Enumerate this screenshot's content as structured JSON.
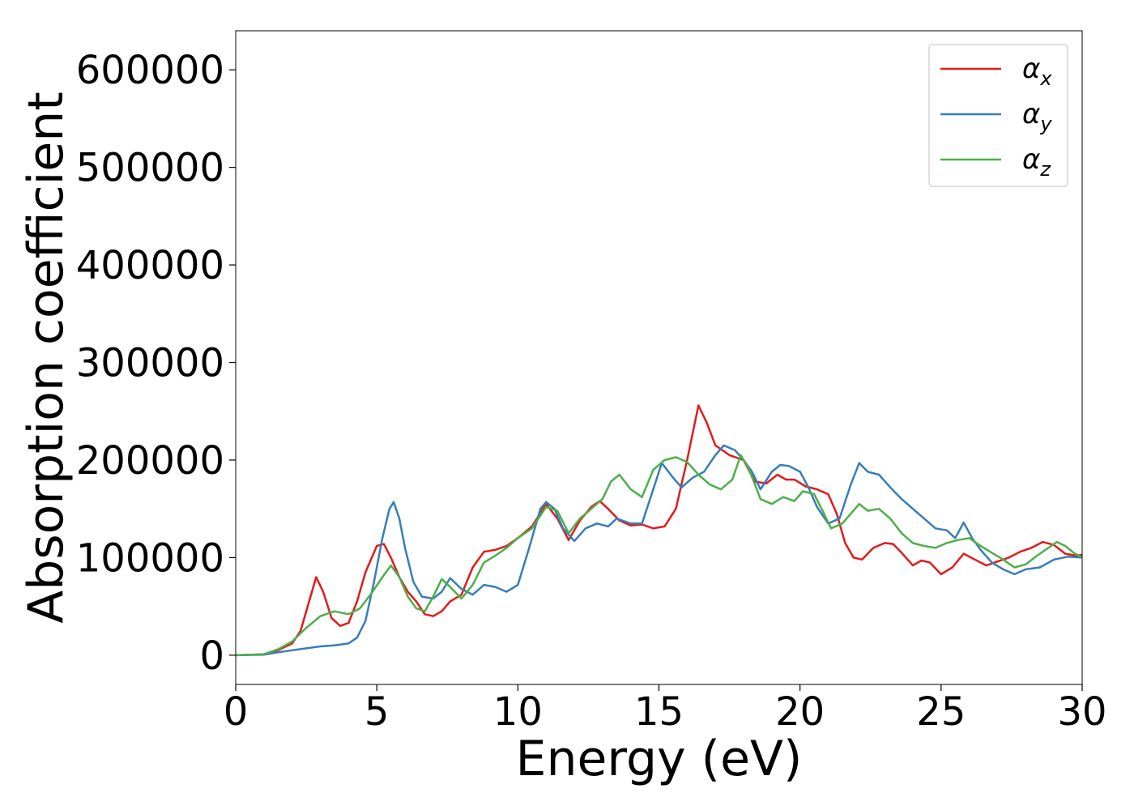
{
  "chart_data": {
    "type": "line",
    "xlabel": "Energy (eV)",
    "ylabel": "Absorption coefficient",
    "xlim": [
      0,
      30
    ],
    "ylim": [
      -30000,
      640000
    ],
    "xticks": [
      0,
      5,
      10,
      15,
      20,
      25,
      30
    ],
    "xtick_labels": [
      "0",
      "5",
      "10",
      "15",
      "20",
      "25",
      "30"
    ],
    "yticks": [
      0,
      100000,
      200000,
      300000,
      400000,
      500000,
      600000
    ],
    "ytick_labels": [
      "0",
      "100000",
      "200000",
      "300000",
      "400000",
      "500000",
      "600000"
    ],
    "grid": false,
    "legend_position": "top-right",
    "series": [
      {
        "name": "αx",
        "base": "α",
        "sub": "x",
        "color": "#e41a1c",
        "x": [
          0,
          1,
          1.5,
          2,
          2.3,
          2.6,
          2.85,
          3.1,
          3.4,
          3.7,
          4.0,
          4.3,
          4.6,
          5.0,
          5.25,
          5.5,
          5.8,
          6.1,
          6.4,
          6.7,
          7.0,
          7.3,
          7.6,
          8.0,
          8.4,
          8.8,
          9.2,
          9.6,
          10.0,
          10.5,
          11.0,
          11.4,
          11.8,
          12.2,
          12.6,
          12.9,
          13.2,
          13.6,
          14.0,
          14.4,
          14.8,
          15.2,
          15.6,
          16.0,
          16.4,
          16.7,
          17.0,
          17.5,
          18.0,
          18.4,
          18.8,
          19.2,
          19.5,
          19.8,
          20.2,
          20.6,
          21.0,
          21.3,
          21.6,
          21.9,
          22.2,
          22.6,
          23.0,
          23.3,
          23.6,
          24.0,
          24.3,
          24.6,
          25.0,
          25.4,
          25.8,
          26.2,
          26.6,
          27.0,
          27.4,
          27.8,
          28.2,
          28.6,
          29.0,
          29.4,
          29.8,
          30.0
        ],
        "values": [
          0,
          1000,
          5000,
          12000,
          25000,
          55000,
          80000,
          65000,
          38000,
          30000,
          33000,
          55000,
          85000,
          112000,
          114000,
          100000,
          80000,
          65000,
          55000,
          42000,
          40000,
          45000,
          55000,
          62000,
          90000,
          106000,
          108000,
          112000,
          120000,
          132000,
          155000,
          140000,
          118000,
          138000,
          152000,
          158000,
          150000,
          138000,
          133000,
          134000,
          130000,
          132000,
          150000,
          200000,
          256000,
          238000,
          215000,
          205000,
          200000,
          178000,
          176000,
          185000,
          180000,
          180000,
          173000,
          170000,
          165000,
          145000,
          115000,
          100000,
          98000,
          110000,
          115000,
          114000,
          105000,
          92000,
          97000,
          95000,
          83000,
          90000,
          104000,
          98000,
          92000,
          96000,
          100000,
          106000,
          110000,
          116000,
          113000,
          104000,
          102000,
          103000
        ]
      },
      {
        "name": "αy",
        "base": "α",
        "sub": "y",
        "color": "#377eb8",
        "x": [
          0,
          1,
          1.5,
          2,
          2.5,
          3.0,
          3.5,
          4.0,
          4.3,
          4.6,
          4.9,
          5.2,
          5.45,
          5.6,
          5.8,
          6.0,
          6.3,
          6.6,
          7.0,
          7.3,
          7.6,
          8.0,
          8.4,
          8.8,
          9.2,
          9.6,
          10.0,
          10.4,
          10.8,
          11.0,
          11.3,
          11.6,
          12.0,
          12.4,
          12.8,
          13.2,
          13.5,
          14.0,
          14.4,
          14.8,
          15.1,
          15.5,
          15.8,
          16.2,
          16.6,
          17.0,
          17.3,
          17.7,
          18.0,
          18.3,
          18.6,
          19.0,
          19.3,
          19.6,
          20.0,
          20.3,
          20.6,
          21.0,
          21.4,
          21.8,
          22.1,
          22.4,
          22.8,
          23.2,
          23.6,
          24.0,
          24.4,
          24.8,
          25.2,
          25.5,
          25.8,
          26.1,
          26.4,
          26.8,
          27.2,
          27.6,
          28.0,
          28.5,
          29.0,
          29.5,
          30.0
        ],
        "values": [
          0,
          500,
          3000,
          5000,
          7000,
          9000,
          10000,
          12000,
          18000,
          35000,
          75000,
          120000,
          150000,
          157000,
          140000,
          110000,
          75000,
          60000,
          58000,
          65000,
          79000,
          68000,
          62000,
          72000,
          70000,
          65000,
          72000,
          110000,
          150000,
          157000,
          150000,
          130000,
          117000,
          130000,
          135000,
          132000,
          140000,
          135000,
          135000,
          170000,
          197000,
          182000,
          172000,
          182000,
          188000,
          205000,
          215000,
          210000,
          200000,
          188000,
          170000,
          188000,
          195000,
          194000,
          188000,
          172000,
          152000,
          135000,
          140000,
          175000,
          197000,
          188000,
          185000,
          172000,
          160000,
          150000,
          140000,
          130000,
          128000,
          120000,
          136000,
          120000,
          108000,
          95000,
          88000,
          83000,
          88000,
          90000,
          98000,
          101000,
          100000
        ]
      },
      {
        "name": "αz",
        "base": "α",
        "sub": "z",
        "color": "#4daf4a",
        "x": [
          0,
          1,
          1.5,
          2,
          2.5,
          3.0,
          3.5,
          4.0,
          4.4,
          4.8,
          5.2,
          5.5,
          5.8,
          6.1,
          6.4,
          6.7,
          7.0,
          7.3,
          7.6,
          8.0,
          8.4,
          8.8,
          9.2,
          9.6,
          10.0,
          10.5,
          11.0,
          11.4,
          11.8,
          12.2,
          12.6,
          13.0,
          13.3,
          13.6,
          14.0,
          14.4,
          14.8,
          15.2,
          15.6,
          16.0,
          16.4,
          16.8,
          17.2,
          17.6,
          17.9,
          18.2,
          18.6,
          19.0,
          19.4,
          19.8,
          20.1,
          20.5,
          20.8,
          21.1,
          21.5,
          21.8,
          22.1,
          22.4,
          22.8,
          23.2,
          23.6,
          24.0,
          24.4,
          24.8,
          25.2,
          25.6,
          26.0,
          26.4,
          26.8,
          27.2,
          27.6,
          28.0,
          28.4,
          28.8,
          29.1,
          29.4,
          29.7,
          30.0
        ],
        "values": [
          0,
          1000,
          6000,
          14000,
          28000,
          40000,
          45000,
          42000,
          48000,
          63000,
          80000,
          92000,
          80000,
          60000,
          48000,
          45000,
          60000,
          78000,
          70000,
          58000,
          72000,
          95000,
          102000,
          110000,
          120000,
          130000,
          152000,
          148000,
          125000,
          140000,
          150000,
          160000,
          178000,
          185000,
          170000,
          162000,
          190000,
          200000,
          203000,
          198000,
          185000,
          175000,
          170000,
          180000,
          205000,
          190000,
          160000,
          155000,
          162000,
          158000,
          168000,
          165000,
          148000,
          130000,
          135000,
          145000,
          155000,
          148000,
          150000,
          140000,
          125000,
          115000,
          112000,
          110000,
          115000,
          118000,
          120000,
          112000,
          105000,
          98000,
          90000,
          93000,
          102000,
          110000,
          116000,
          112000,
          105000,
          100000
        ]
      }
    ]
  }
}
